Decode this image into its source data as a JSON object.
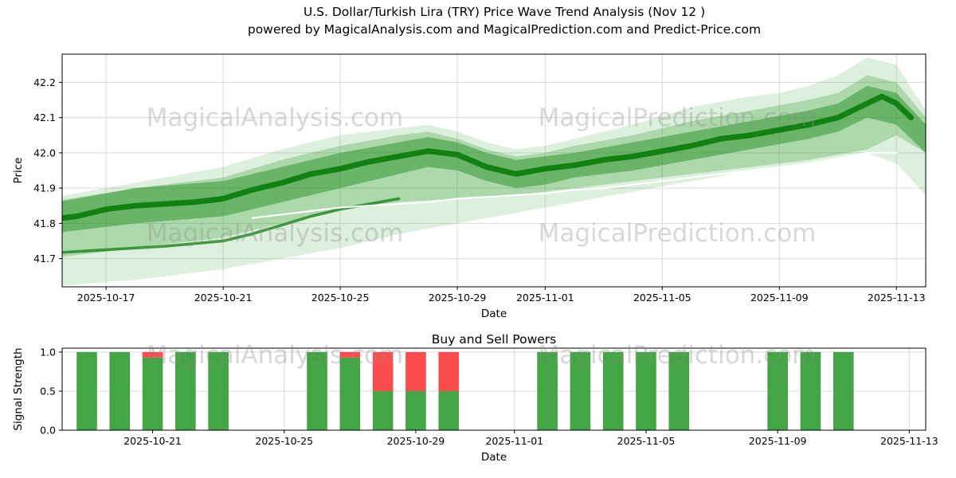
{
  "title": {
    "line1": "U.S. Dollar/Turkish Lira (TRY) Price Wave Trend Analysis (Nov 12 )",
    "line2": "powered by MagicalAnalysis.com and MagicalPrediction.com and Predict-Price.com"
  },
  "watermarks": {
    "left": "MagicalAnalysis.com",
    "right": "MagicalPrediction.com",
    "color": "#8a8a8a"
  },
  "chart_data": [
    {
      "type": "area",
      "name": "price-wave-trend",
      "xlabel": "Date",
      "ylabel": "Price",
      "grid": true,
      "x_ticks": [
        "2025-10-17",
        "2025-10-21",
        "2025-10-25",
        "2025-10-29",
        "2025-11-01",
        "2025-11-05",
        "2025-11-09",
        "2025-11-13"
      ],
      "y_ticks": [
        "41.7",
        "41.8",
        "41.9",
        "42.0",
        "42.1",
        "42.2"
      ],
      "xlim": [
        "2025-10-15T12:00:00Z",
        "2025-11-14T00:00:00Z"
      ],
      "ylim": [
        41.62,
        42.28
      ],
      "bands": [
        {
          "name": "outer-band",
          "color": "#33a033",
          "opacity": 0.17,
          "top": [
            [
              "2025-10-15",
              41.87
            ],
            [
              "2025-10-17",
              41.9
            ],
            [
              "2025-10-19",
              41.93
            ],
            [
              "2025-10-21",
              41.96
            ],
            [
              "2025-10-23",
              42.01
            ],
            [
              "2025-10-25",
              42.05
            ],
            [
              "2025-10-27",
              42.07
            ],
            [
              "2025-10-28",
              42.08
            ],
            [
              "2025-10-29",
              42.06
            ],
            [
              "2025-10-30",
              42.03
            ],
            [
              "2025-10-31",
              42.01
            ],
            [
              "2025-11-01",
              42.02
            ],
            [
              "2025-11-02",
              42.04
            ],
            [
              "2025-11-04",
              42.08
            ],
            [
              "2025-11-06",
              42.13
            ],
            [
              "2025-11-08",
              42.16
            ],
            [
              "2025-11-09",
              42.17
            ],
            [
              "2025-11-10",
              42.19
            ],
            [
              "2025-11-11",
              42.22
            ],
            [
              "2025-11-12",
              42.27
            ],
            [
              "2025-11-13",
              42.25
            ],
            [
              "2025-11-14",
              42.12
            ]
          ],
          "bottom": [
            [
              "2025-10-15",
              41.62
            ],
            [
              "2025-10-18",
              41.64
            ],
            [
              "2025-10-21",
              41.67
            ],
            [
              "2025-10-23",
              41.7
            ],
            [
              "2025-10-25",
              41.73
            ],
            [
              "2025-10-27",
              41.77
            ],
            [
              "2025-10-29",
              41.8
            ],
            [
              "2025-10-31",
              41.83
            ],
            [
              "2025-11-02",
              41.86
            ],
            [
              "2025-11-04",
              41.89
            ],
            [
              "2025-11-06",
              41.92
            ],
            [
              "2025-11-08",
              41.95
            ],
            [
              "2025-11-10",
              41.97
            ],
            [
              "2025-11-12",
              42.0
            ],
            [
              "2025-11-13",
              41.97
            ],
            [
              "2025-11-14",
              41.88
            ]
          ]
        },
        {
          "name": "mid-band",
          "color": "#2f9e2f",
          "opacity": 0.28,
          "top": [
            [
              "2025-10-15",
              41.86
            ],
            [
              "2025-10-18",
              41.9
            ],
            [
              "2025-10-21",
              41.93
            ],
            [
              "2025-10-23",
              41.98
            ],
            [
              "2025-10-25",
              42.02
            ],
            [
              "2025-10-27",
              42.05
            ],
            [
              "2025-10-28",
              42.06
            ],
            [
              "2025-10-29",
              42.04
            ],
            [
              "2025-10-30",
              42.01
            ],
            [
              "2025-10-31",
              41.99
            ],
            [
              "2025-11-01",
              42.0
            ],
            [
              "2025-11-02",
              42.02
            ],
            [
              "2025-11-04",
              42.05
            ],
            [
              "2025-11-06",
              42.09
            ],
            [
              "2025-11-08",
              42.12
            ],
            [
              "2025-11-10",
              42.15
            ],
            [
              "2025-11-11",
              42.17
            ],
            [
              "2025-11-12",
              42.22
            ],
            [
              "2025-11-13",
              42.2
            ],
            [
              "2025-11-14",
              42.1
            ]
          ],
          "bottom": [
            [
              "2025-10-15",
              41.7
            ],
            [
              "2025-10-18",
              41.73
            ],
            [
              "2025-10-21",
              41.76
            ],
            [
              "2025-10-23",
              41.8
            ],
            [
              "2025-10-25",
              41.84
            ],
            [
              "2025-10-27",
              41.86
            ],
            [
              "2025-10-29",
              41.87
            ],
            [
              "2025-10-31",
              41.88
            ],
            [
              "2025-11-02",
              41.9
            ],
            [
              "2025-11-04",
              41.92
            ],
            [
              "2025-11-06",
              41.94
            ],
            [
              "2025-11-08",
              41.96
            ],
            [
              "2025-11-10",
              41.98
            ],
            [
              "2025-11-12",
              42.01
            ],
            [
              "2025-11-13",
              42.05
            ],
            [
              "2025-11-14",
              42.0
            ]
          ]
        },
        {
          "name": "inner-band",
          "color": "#259025",
          "opacity": 0.5,
          "top": [
            [
              "2025-10-15",
              41.855
            ],
            [
              "2025-10-18",
              41.9
            ],
            [
              "2025-10-21",
              41.92
            ],
            [
              "2025-10-23",
              41.96
            ],
            [
              "2025-10-25",
              42.0
            ],
            [
              "2025-10-27",
              42.03
            ],
            [
              "2025-10-28",
              42.045
            ],
            [
              "2025-10-29",
              42.03
            ],
            [
              "2025-10-30",
              42.0
            ],
            [
              "2025-10-31",
              41.98
            ],
            [
              "2025-11-01",
              41.99
            ],
            [
              "2025-11-02",
              42.0
            ],
            [
              "2025-11-04",
              42.03
            ],
            [
              "2025-11-06",
              42.06
            ],
            [
              "2025-11-08",
              42.09
            ],
            [
              "2025-11-10",
              42.12
            ],
            [
              "2025-11-11",
              42.14
            ],
            [
              "2025-11-12",
              42.19
            ],
            [
              "2025-11-13",
              42.17
            ],
            [
              "2025-11-14",
              42.08
            ]
          ],
          "bottom": [
            [
              "2025-10-15",
              41.77
            ],
            [
              "2025-10-18",
              41.8
            ],
            [
              "2025-10-21",
              41.82
            ],
            [
              "2025-10-23",
              41.86
            ],
            [
              "2025-10-25",
              41.9
            ],
            [
              "2025-10-27",
              41.94
            ],
            [
              "2025-10-28",
              41.96
            ],
            [
              "2025-10-29",
              41.95
            ],
            [
              "2025-10-30",
              41.92
            ],
            [
              "2025-10-31",
              41.9
            ],
            [
              "2025-11-01",
              41.91
            ],
            [
              "2025-11-02",
              41.93
            ],
            [
              "2025-11-04",
              41.95
            ],
            [
              "2025-11-06",
              41.98
            ],
            [
              "2025-11-08",
              42.01
            ],
            [
              "2025-11-10",
              42.04
            ],
            [
              "2025-11-11",
              42.06
            ],
            [
              "2025-11-12",
              42.1
            ],
            [
              "2025-11-13",
              42.08
            ],
            [
              "2025-11-14",
              42.0
            ]
          ]
        }
      ],
      "lines": [
        {
          "name": "main-trend-line",
          "color": "#0d7f0d",
          "opacity": 0.95,
          "width": 7,
          "points": [
            [
              "2025-10-15",
              41.81
            ],
            [
              "2025-10-16",
              41.82
            ],
            [
              "2025-10-17",
              41.84
            ],
            [
              "2025-10-18",
              41.85
            ],
            [
              "2025-10-19",
              41.855
            ],
            [
              "2025-10-20",
              41.86
            ],
            [
              "2025-10-21",
              41.87
            ],
            [
              "2025-10-22",
              41.895
            ],
            [
              "2025-10-23",
              41.915
            ],
            [
              "2025-10-24",
              41.94
            ],
            [
              "2025-10-25",
              41.955
            ],
            [
              "2025-10-26",
              41.975
            ],
            [
              "2025-10-27",
              41.99
            ],
            [
              "2025-10-28",
              42.005
            ],
            [
              "2025-10-29",
              41.995
            ],
            [
              "2025-10-30",
              41.96
            ],
            [
              "2025-10-31",
              41.94
            ],
            [
              "2025-11-01",
              41.955
            ],
            [
              "2025-11-02",
              41.965
            ],
            [
              "2025-11-03",
              41.98
            ],
            [
              "2025-11-04",
              41.99
            ],
            [
              "2025-11-05",
              42.005
            ],
            [
              "2025-11-06",
              42.02
            ],
            [
              "2025-11-07",
              42.04
            ],
            [
              "2025-11-08",
              42.05
            ],
            [
              "2025-11-09",
              42.065
            ],
            [
              "2025-11-10",
              42.08
            ],
            [
              "2025-11-11",
              42.1
            ],
            [
              "2025-11-12",
              42.14
            ],
            [
              "2025-11-12T12:00:00Z",
              42.16
            ],
            [
              "2025-11-13",
              42.14
            ],
            [
              "2025-11-13T12:00:00Z",
              42.1
            ]
          ]
        },
        {
          "name": "secondary-trend-line",
          "color": "#1a831a",
          "opacity": 0.8,
          "width": 3.5,
          "points": [
            [
              "2025-10-15",
              41.715
            ],
            [
              "2025-10-17",
              41.725
            ],
            [
              "2025-10-19",
              41.735
            ],
            [
              "2025-10-21",
              41.75
            ],
            [
              "2025-10-22",
              41.77
            ],
            [
              "2025-10-23",
              41.795
            ],
            [
              "2025-10-24",
              41.82
            ],
            [
              "2025-10-25",
              41.84
            ],
            [
              "2025-10-26",
              41.855
            ],
            [
              "2025-10-27",
              41.87
            ]
          ]
        },
        {
          "name": "white-mid-line",
          "color": "#ffffff",
          "opacity": 0.95,
          "width": 2.2,
          "points": [
            [
              "2025-10-22",
              41.815
            ],
            [
              "2025-10-23",
              41.825
            ],
            [
              "2025-10-24",
              41.835
            ],
            [
              "2025-10-25",
              41.845
            ],
            [
              "2025-10-26",
              41.85
            ],
            [
              "2025-10-27",
              41.855
            ],
            [
              "2025-10-28",
              41.86
            ],
            [
              "2025-10-29",
              41.87
            ],
            [
              "2025-10-30",
              41.875
            ],
            [
              "2025-10-31",
              41.88
            ],
            [
              "2025-11-01",
              41.885
            ],
            [
              "2025-11-02",
              41.895
            ],
            [
              "2025-11-03",
              41.9
            ],
            [
              "2025-11-04",
              41.91
            ],
            [
              "2025-11-05",
              41.92
            ],
            [
              "2025-11-06",
              41.93
            ],
            [
              "2025-11-07",
              41.94
            ],
            [
              "2025-11-08",
              41.95
            ],
            [
              "2025-11-09",
              41.96
            ],
            [
              "2025-11-10",
              41.97
            ],
            [
              "2025-11-11",
              41.985
            ],
            [
              "2025-11-12",
              42.0
            ],
            [
              "2025-11-13",
              42.0
            ]
          ]
        }
      ]
    },
    {
      "type": "bar",
      "name": "buy-sell-powers",
      "title": "Buy and Sell Powers",
      "xlabel": "Date",
      "ylabel": "Signal Strength",
      "grid": true,
      "x_ticks": [
        "2025-10-21",
        "2025-10-25",
        "2025-10-29",
        "2025-11-01",
        "2025-11-05",
        "2025-11-09",
        "2025-11-13"
      ],
      "y_ticks": [
        "0.0",
        "0.5",
        "1.0"
      ],
      "xlim": [
        "2025-10-18T06:00:00Z",
        "2025-11-13T12:00:00Z"
      ],
      "ylim": [
        0,
        1.05
      ],
      "bar_width_days": 0.62,
      "colors": {
        "buy": "#43a543",
        "sell": "#fb4d4d"
      },
      "bars": [
        {
          "date": "2025-10-19",
          "buy": 1.0,
          "sell": 0.0
        },
        {
          "date": "2025-10-20",
          "buy": 1.0,
          "sell": 0.0
        },
        {
          "date": "2025-10-21",
          "buy": 0.93,
          "sell": 0.07
        },
        {
          "date": "2025-10-22",
          "buy": 1.0,
          "sell": 0.0
        },
        {
          "date": "2025-10-23",
          "buy": 1.0,
          "sell": 0.0
        },
        {
          "date": "2025-10-26",
          "buy": 1.0,
          "sell": 0.0
        },
        {
          "date": "2025-10-27",
          "buy": 0.93,
          "sell": 0.07
        },
        {
          "date": "2025-10-28",
          "buy": 0.5,
          "sell": 0.5
        },
        {
          "date": "2025-10-29",
          "buy": 0.5,
          "sell": 0.5
        },
        {
          "date": "2025-10-30",
          "buy": 0.5,
          "sell": 0.5
        },
        {
          "date": "2025-11-02",
          "buy": 1.0,
          "sell": 0.0
        },
        {
          "date": "2025-11-03",
          "buy": 1.0,
          "sell": 0.0
        },
        {
          "date": "2025-11-04",
          "buy": 1.0,
          "sell": 0.0
        },
        {
          "date": "2025-11-05",
          "buy": 1.0,
          "sell": 0.0
        },
        {
          "date": "2025-11-06",
          "buy": 1.0,
          "sell": 0.0
        },
        {
          "date": "2025-11-09",
          "buy": 1.0,
          "sell": 0.0
        },
        {
          "date": "2025-11-10",
          "buy": 1.0,
          "sell": 0.0
        },
        {
          "date": "2025-11-11",
          "buy": 1.0,
          "sell": 0.0
        }
      ]
    }
  ]
}
